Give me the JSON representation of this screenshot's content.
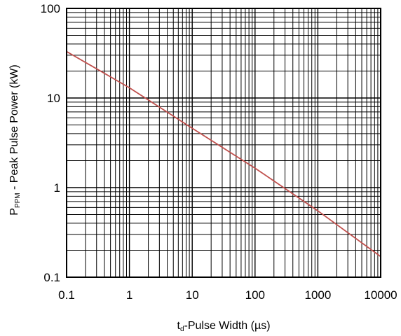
{
  "chart_data": {
    "type": "line",
    "xscale": "log",
    "yscale": "log",
    "xlim": [
      0.1,
      10000
    ],
    "ylim": [
      0.1,
      100
    ],
    "grid": true,
    "x_ticks": [
      "0.1",
      "1",
      "10",
      "100",
      "1000",
      "10000"
    ],
    "y_ticks": [
      "100",
      "10",
      "1",
      "0.1"
    ],
    "ylabel_main": "P",
    "ylabel_sub": "PPM",
    "ylabel_rest": " - Peak Pulse Power (kW)",
    "xlabel_main": "t",
    "xlabel_sub": "d",
    "xlabel_rest": "-Pulse Width (µs)",
    "series": [
      {
        "color": "#c0504d",
        "x": [
          0.1,
          1,
          10,
          100,
          1000,
          10000
        ],
        "y": [
          33,
          13,
          4.6,
          1.65,
          0.55,
          0.17
        ]
      }
    ]
  }
}
